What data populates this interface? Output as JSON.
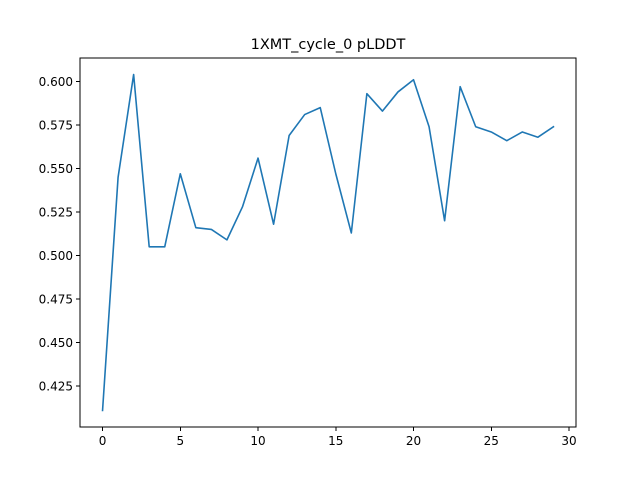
{
  "chart_data": {
    "type": "line",
    "title": "1XMT_cycle_0 pLDDT",
    "xlabel": "",
    "ylabel": "",
    "xlim": [
      -1.45,
      30.45
    ],
    "ylim": [
      0.4015,
      0.6135
    ],
    "x_ticks": [
      0,
      5,
      10,
      15,
      20,
      25,
      30
    ],
    "y_ticks": [
      0.425,
      0.45,
      0.475,
      0.5,
      0.525,
      0.55,
      0.575,
      0.6
    ],
    "x_tick_labels": [
      "0",
      "5",
      "10",
      "15",
      "20",
      "25",
      "30"
    ],
    "y_tick_labels": [
      "0.425",
      "0.450",
      "0.475",
      "0.500",
      "0.525",
      "0.550",
      "0.575",
      "0.600"
    ],
    "grid": false,
    "series": [
      {
        "color": "#1f77b4",
        "x": [
          0,
          1,
          2,
          3,
          4,
          5,
          6,
          7,
          8,
          9,
          10,
          11,
          12,
          13,
          14,
          15,
          16,
          17,
          18,
          19,
          20,
          21,
          22,
          23,
          24,
          25,
          26,
          27,
          28,
          29
        ],
        "y": [
          0.411,
          0.545,
          0.604,
          0.505,
          0.505,
          0.547,
          0.516,
          0.515,
          0.509,
          0.528,
          0.556,
          0.518,
          0.569,
          0.581,
          0.585,
          0.547,
          0.513,
          0.593,
          0.583,
          0.594,
          0.601,
          0.574,
          0.52,
          0.597,
          0.574,
          0.571,
          0.566,
          0.571,
          0.568,
          0.574
        ]
      }
    ]
  }
}
